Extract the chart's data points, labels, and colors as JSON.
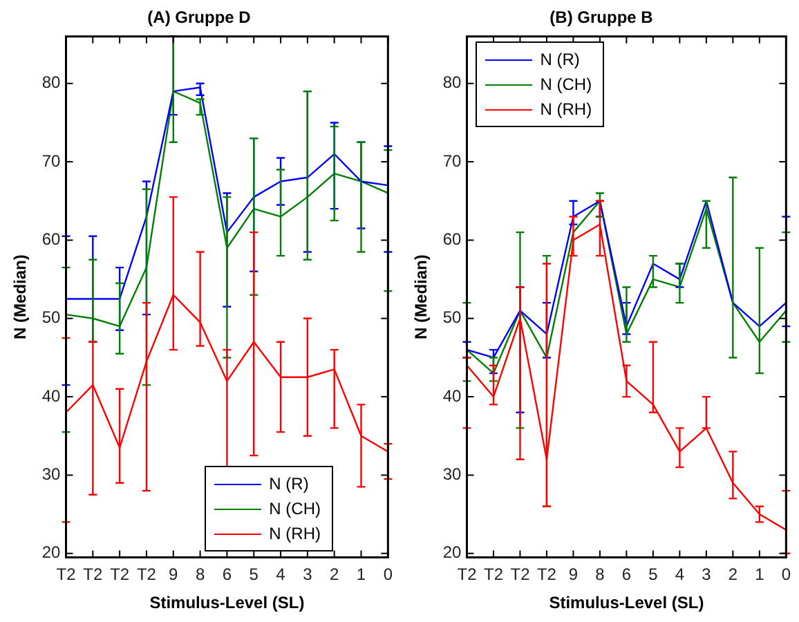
{
  "chart_data": [
    {
      "type": "line",
      "title": "(A) Gruppe D",
      "xlabel": "Stimulus-Level (SL)",
      "ylabel": "N (Median)",
      "categories": [
        "T2",
        "T2",
        "T2",
        "T2",
        "9",
        "8",
        "6",
        "5",
        "4",
        "3",
        "2",
        "1",
        "0"
      ],
      "ylim": [
        19.5,
        86
      ],
      "yticks": [
        20,
        30,
        40,
        50,
        60,
        70,
        80
      ],
      "grid": false,
      "legend": "bottom right",
      "marker": "none",
      "line_style": "solid",
      "series": [
        {
          "name": "N (R)",
          "color": "#0000ff",
          "values": [
            52.5,
            52.5,
            52.5,
            63,
            79,
            79.5,
            61,
            65.5,
            67.5,
            68,
            71,
            67.5,
            67
          ],
          "errors": [
            [
              41.5,
              60.5
            ],
            [
              47,
              60.5
            ],
            [
              48.5,
              56.5
            ],
            [
              50.5,
              67.5
            ],
            [
              76,
              86
            ],
            [
              78.5,
              80
            ],
            [
              51.5,
              66
            ],
            [
              56,
              73
            ],
            [
              64.5,
              70.5
            ],
            [
              58.5,
              79
            ],
            [
              64,
              75
            ],
            [
              61.5,
              72.5
            ],
            [
              58.5,
              72
            ]
          ]
        },
        {
          "name": "N (CH)",
          "color": "#008000",
          "values": [
            50.5,
            50,
            49,
            56.5,
            79,
            77.5,
            59,
            64,
            63,
            65.5,
            68.5,
            67.5,
            66
          ],
          "errors": [
            [
              35.5,
              56.5
            ],
            [
              47,
              57.5
            ],
            [
              45.5,
              54.5
            ],
            [
              41.5,
              66.5
            ],
            [
              72.5,
              86
            ],
            [
              76,
              78
            ],
            [
              45,
              65.5
            ],
            [
              53,
              73
            ],
            [
              58,
              69
            ],
            [
              57.5,
              79
            ],
            [
              62.5,
              74.5
            ],
            [
              58.5,
              72.5
            ],
            [
              53.5,
              71.5
            ]
          ]
        },
        {
          "name": "N (RH)",
          "color": "#ff0000",
          "values": [
            38,
            41.5,
            33.5,
            44.5,
            53,
            49.5,
            42,
            47,
            42.5,
            42.5,
            43.5,
            35,
            33
          ],
          "errors": [
            [
              24,
              47.5
            ],
            [
              27.5,
              47
            ],
            [
              29,
              41
            ],
            [
              28,
              52
            ],
            [
              46,
              65.5
            ],
            [
              46.5,
              58.5
            ],
            [
              30.5,
              46
            ],
            [
              32.5,
              61
            ],
            [
              35.5,
              47
            ],
            [
              35,
              50
            ],
            [
              36,
              46
            ],
            [
              28.5,
              39
            ],
            [
              29.5,
              34
            ]
          ]
        }
      ]
    },
    {
      "type": "line",
      "title": "(B) Gruppe B",
      "xlabel": "Stimulus-Level (SL)",
      "ylabel": "N (Median)",
      "categories": [
        "T2",
        "T2",
        "T2",
        "T2",
        "9",
        "8",
        "6",
        "5",
        "4",
        "3",
        "2",
        "1",
        "0"
      ],
      "ylim": [
        19.5,
        86
      ],
      "yticks": [
        20,
        30,
        40,
        50,
        60,
        70,
        80
      ],
      "grid": false,
      "legend": "top left",
      "marker": "none",
      "line_style": "solid",
      "series": [
        {
          "name": "N (R)",
          "color": "#0000ff",
          "values": [
            46,
            45,
            51,
            48,
            63,
            65,
            49,
            57,
            55,
            65,
            52,
            49,
            52
          ],
          "errors": [
            [
              45,
              47
            ],
            [
              43,
              46
            ],
            [
              38,
              54
            ],
            [
              45,
              52
            ],
            [
              62,
              65
            ],
            [
              63,
              65
            ],
            [
              48,
              52
            ],
            null,
            [
              54,
              57
            ],
            null,
            null,
            null,
            [
              49,
              63
            ]
          ]
        },
        {
          "name": "N (CH)",
          "color": "#008000",
          "values": [
            46,
            43,
            51,
            45,
            61,
            65,
            48,
            55,
            54,
            64,
            52,
            47,
            51
          ],
          "errors": [
            [
              42,
              52
            ],
            [
              42,
              45
            ],
            [
              36,
              61
            ],
            [
              26,
              58
            ],
            null,
            [
              63,
              66
            ],
            [
              47,
              54
            ],
            [
              54,
              58
            ],
            [
              52,
              57
            ],
            [
              59,
              65
            ],
            [
              45,
              68
            ],
            [
              43,
              59
            ],
            [
              47,
              61
            ]
          ]
        },
        {
          "name": "N (RH)",
          "color": "#ff0000",
          "values": [
            44,
            40,
            50,
            32,
            60,
            62,
            42,
            39,
            33,
            36,
            29,
            25,
            23
          ],
          "errors": [
            [
              36,
              45
            ],
            [
              39,
              44
            ],
            [
              32,
              54
            ],
            [
              26,
              57
            ],
            [
              58,
              63
            ],
            [
              58,
              65
            ],
            [
              40,
              44
            ],
            [
              38,
              47
            ],
            [
              31,
              36
            ],
            [
              36,
              40
            ],
            [
              27,
              33
            ],
            [
              24,
              26
            ],
            [
              20,
              28
            ]
          ]
        }
      ]
    }
  ]
}
